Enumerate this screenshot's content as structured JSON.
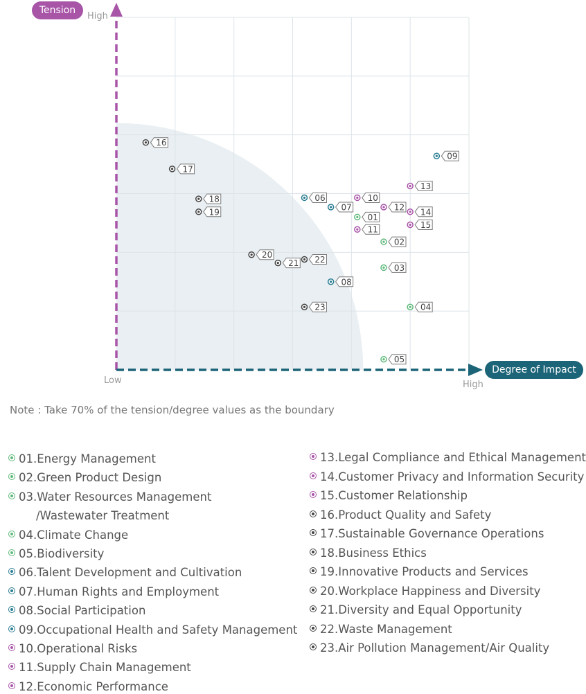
{
  "chart_data": {
    "type": "scatter",
    "x_axis": {
      "label": "Degree of Impact",
      "low_label": "Low",
      "high_label": "High",
      "range": [
        0,
        6
      ]
    },
    "y_axis": {
      "label": "Tension",
      "high_label": "High",
      "range": [
        0,
        6
      ]
    },
    "grid": true,
    "boundary": {
      "type": "quarter-circle",
      "fraction": 0.7
    },
    "points": [
      {
        "label": "01",
        "x": 4.1,
        "y": 2.6,
        "group": "green"
      },
      {
        "label": "02",
        "x": 4.55,
        "y": 2.18,
        "group": "green"
      },
      {
        "label": "03",
        "x": 4.55,
        "y": 1.74,
        "group": "green"
      },
      {
        "label": "04",
        "x": 5.0,
        "y": 1.07,
        "group": "green"
      },
      {
        "label": "05",
        "x": 4.55,
        "y": 0.18,
        "group": "green"
      },
      {
        "label": "06",
        "x": 3.2,
        "y": 2.93,
        "group": "blue"
      },
      {
        "label": "07",
        "x": 3.65,
        "y": 2.77,
        "group": "blue"
      },
      {
        "label": "08",
        "x": 3.65,
        "y": 1.5,
        "group": "blue"
      },
      {
        "label": "09",
        "x": 5.45,
        "y": 3.64,
        "group": "blue"
      },
      {
        "label": "10",
        "x": 4.1,
        "y": 2.93,
        "group": "purple"
      },
      {
        "label": "11",
        "x": 4.1,
        "y": 2.39,
        "group": "purple"
      },
      {
        "label": "12",
        "x": 4.55,
        "y": 2.77,
        "group": "purple"
      },
      {
        "label": "13",
        "x": 5.0,
        "y": 3.13,
        "group": "purple"
      },
      {
        "label": "14",
        "x": 5.0,
        "y": 2.69,
        "group": "purple"
      },
      {
        "label": "15",
        "x": 5.0,
        "y": 2.47,
        "group": "purple"
      },
      {
        "label": "16",
        "x": 0.5,
        "y": 3.87,
        "group": "dark"
      },
      {
        "label": "17",
        "x": 0.95,
        "y": 3.42,
        "group": "dark"
      },
      {
        "label": "18",
        "x": 1.4,
        "y": 2.91,
        "group": "dark"
      },
      {
        "label": "19",
        "x": 1.4,
        "y": 2.69,
        "group": "dark"
      },
      {
        "label": "20",
        "x": 2.3,
        "y": 1.96,
        "group": "dark"
      },
      {
        "label": "21",
        "x": 2.75,
        "y": 1.82,
        "group": "dark"
      },
      {
        "label": "22",
        "x": 3.2,
        "y": 1.88,
        "group": "dark"
      },
      {
        "label": "23",
        "x": 3.2,
        "y": 1.07,
        "group": "dark"
      }
    ]
  },
  "colors": {
    "green": "#5fb97b",
    "blue": "#2a7d92",
    "purple": "#a855a8",
    "dark": "#444444",
    "tension_axis": "#a855a8",
    "impact_axis": "#1c6478",
    "grid": "#dde4ea",
    "boundary_fill": "#e9eff2",
    "label_border": "#7a7a7a"
  },
  "note": "Note : Take 70% of the tension/degree values as the boundary",
  "legend_left": [
    {
      "text": "01.Energy Management",
      "group": "green"
    },
    {
      "text": "02.Green Product Design",
      "group": "green"
    },
    {
      "text": "03.Water Resources Management",
      "cont": "/Wastewater Treatment",
      "group": "green"
    },
    {
      "text": "04.Climate Change",
      "group": "green"
    },
    {
      "text": "05.Biodiversity",
      "group": "green"
    },
    {
      "text": "06.Talent Development and Cultivation",
      "group": "blue"
    },
    {
      "text": "07.Human Rights and Employment",
      "group": "blue"
    },
    {
      "text": "08.Social Participation",
      "group": "blue"
    },
    {
      "text": "09.Occupational Health and Safety Management",
      "group": "blue"
    },
    {
      "text": "10.Operational Risks",
      "group": "purple"
    },
    {
      "text": "11.Supply Chain Management",
      "group": "purple"
    },
    {
      "text": "12.Economic Performance",
      "group": "purple"
    }
  ],
  "legend_right": [
    {
      "text": "13.Legal Compliance and Ethical Management",
      "group": "purple"
    },
    {
      "text": "14.Customer Privacy and Information Security",
      "group": "purple"
    },
    {
      "text": "15.Customer Relationship",
      "group": "purple"
    },
    {
      "text": "16.Product Quality and Safety",
      "group": "dark"
    },
    {
      "text": "17.Sustainable Governance Operations",
      "group": "dark"
    },
    {
      "text": "18.Business Ethics",
      "group": "dark"
    },
    {
      "text": "19.Innovative Products and Services",
      "group": "dark"
    },
    {
      "text": "20.Workplace Happiness and Diversity",
      "group": "dark"
    },
    {
      "text": "21.Diversity and Equal Opportunity",
      "group": "dark"
    },
    {
      "text": "22.Waste Management",
      "group": "dark"
    },
    {
      "text": "23.Air Pollution Management/Air Quality",
      "group": "dark"
    }
  ]
}
